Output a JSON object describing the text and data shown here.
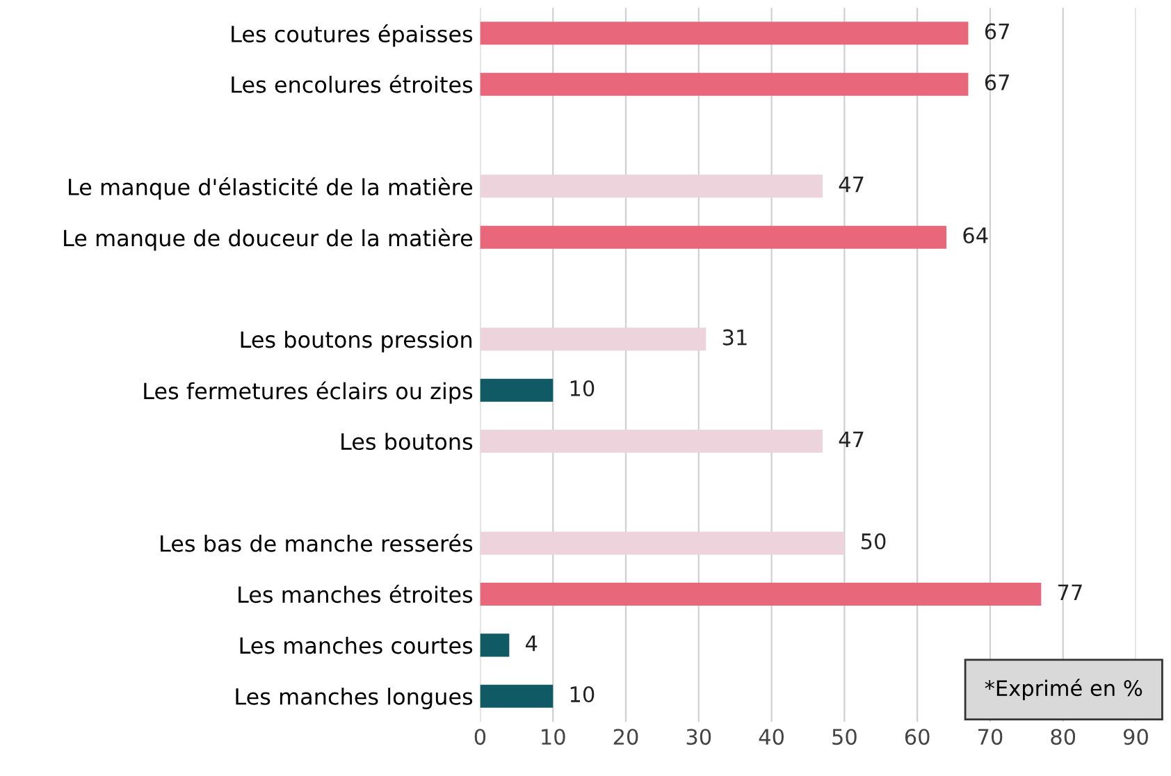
{
  "chart_data": {
    "type": "bar",
    "orientation": "horizontal",
    "categories": [
      "Les coutures épaisses",
      "Les encolures étroites",
      null,
      "Le manque d'élasticité de la matière",
      "Le manque de douceur de la matière",
      null,
      "Les boutons pression",
      "Les fermetures éclairs ou zips",
      "Les boutons",
      null,
      "Les bas de manche resserés",
      "Les manches étroites",
      "Les manches courtes",
      "Les manches longues"
    ],
    "values": [
      67,
      67,
      null,
      47,
      64,
      null,
      31,
      10,
      47,
      null,
      50,
      77,
      4,
      10
    ],
    "colors": [
      "#e8677a",
      "#e8677a",
      null,
      "#ecd3dc",
      "#e8677a",
      null,
      "#ecd3dc",
      "#0f5a65",
      "#ecd3dc",
      null,
      "#ecd3dc",
      "#e8677a",
      "#0f5a65",
      "#0f5a65"
    ],
    "xlim": [
      0,
      90
    ],
    "xticks": [
      0,
      10,
      20,
      30,
      40,
      50,
      60,
      70,
      80,
      90
    ],
    "grid": "x",
    "data_labels": true,
    "legend": false,
    "annotations": [
      "*Exprimé en %"
    ]
  }
}
